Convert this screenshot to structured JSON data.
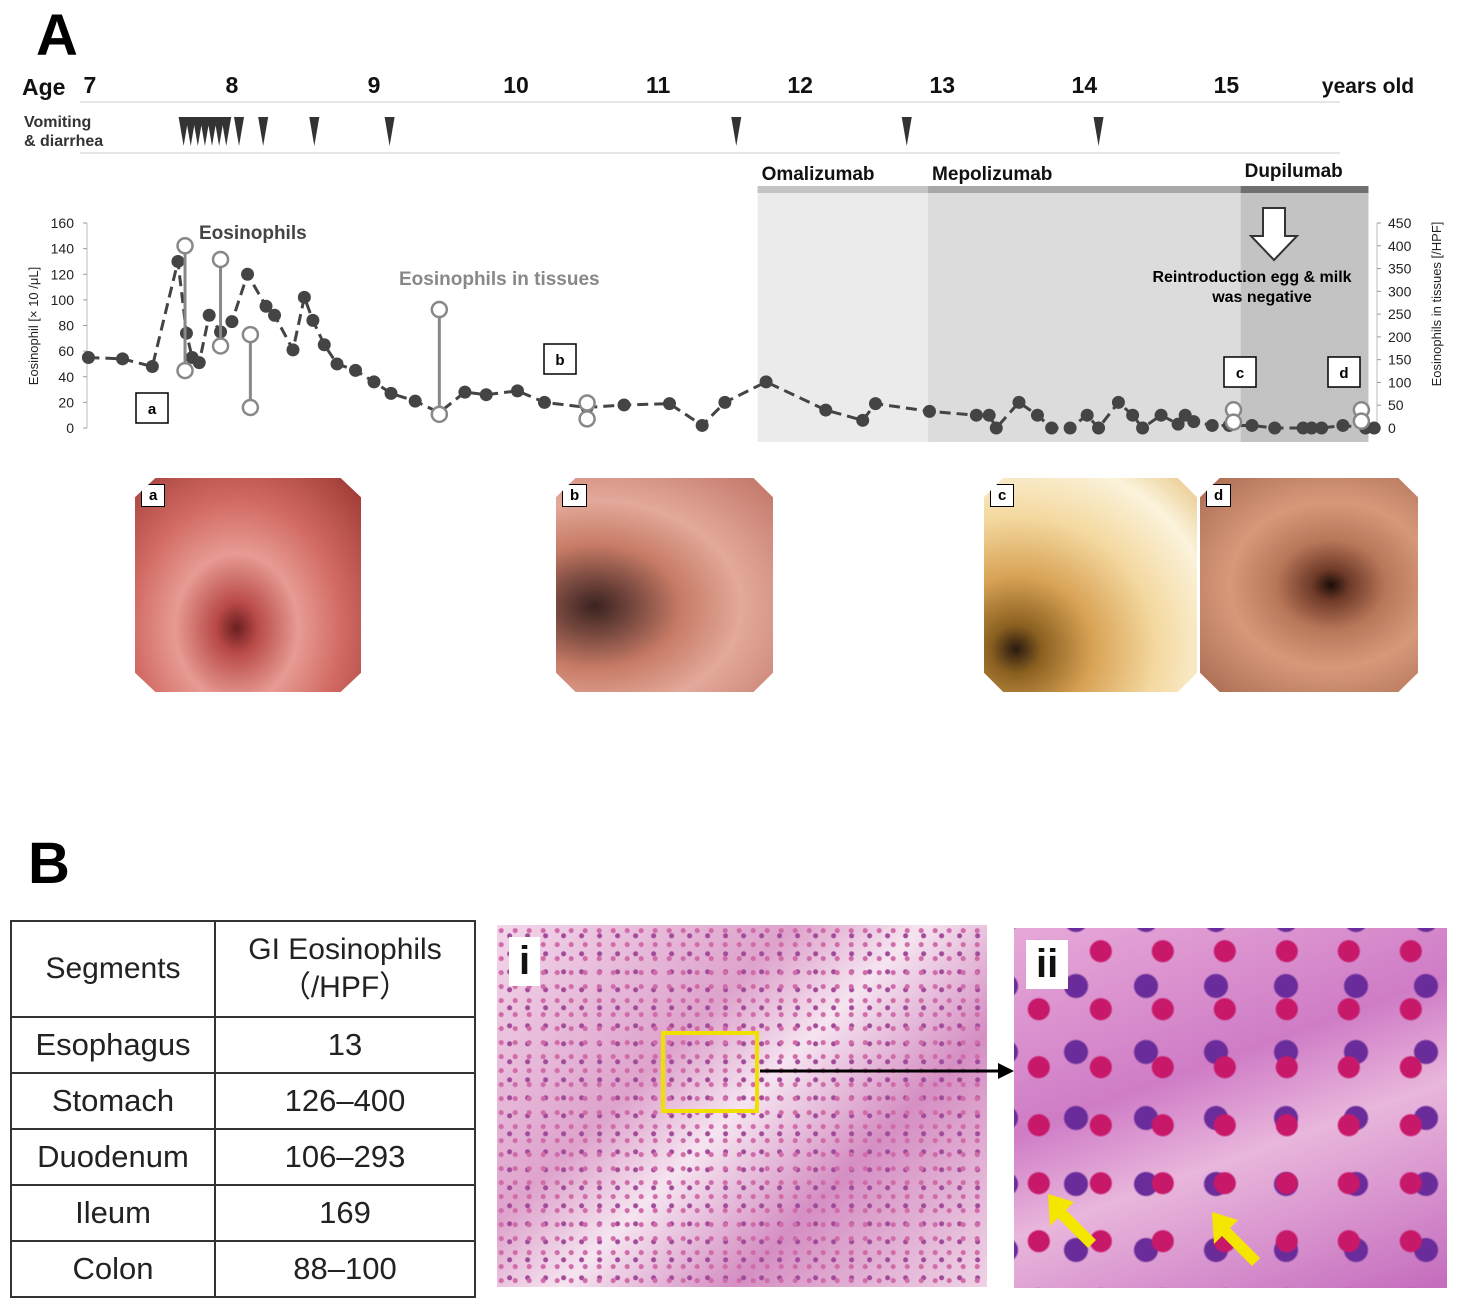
{
  "panelA": {
    "letter": "A"
  },
  "panelB": {
    "letter": "B"
  },
  "timeline": {
    "age_label": "Age",
    "ages": [
      "7",
      "8",
      "9",
      "10",
      "11",
      "12",
      "13",
      "14",
      "15"
    ],
    "unit": "years old",
    "vomit_label_1": "Vomiting",
    "vomit_label_2": "& diarrhea",
    "vomiting_events_age": [
      7.66,
      7.71,
      7.76,
      7.81,
      7.86,
      7.91,
      7.96,
      8.05,
      8.22,
      8.58,
      9.11,
      11.55,
      12.75,
      14.1
    ]
  },
  "treatments": [
    {
      "name": "Omalizumab",
      "start": 11.7,
      "end": 12.9,
      "color": "#ebebeb",
      "bar": "#c4c4c4"
    },
    {
      "name": "Mepolizumab",
      "start": 12.9,
      "end": 15.1,
      "color": "#dcdcdc",
      "bar": "#a8a8a8"
    },
    {
      "name": "Dupilumab",
      "start": 15.1,
      "end": 16.0,
      "color": "#c3c3c3",
      "bar": "#707070"
    }
  ],
  "annotations": {
    "eos_label": "Eosinophils",
    "tissue_label": "Eosinophils in tissues",
    "reintro_1": "Reintroduction egg & milk",
    "reintro_2": "was negative"
  },
  "chart_data": {
    "type": "line",
    "ylabel_left": "Eosinophil [× 10 /μL]",
    "ylabel_right": "Eosinophils in tissues [/HPF]",
    "ylim_left": [
      0,
      160
    ],
    "ylim_right": [
      0,
      450
    ],
    "left_ticks": [
      0,
      20,
      40,
      60,
      80,
      100,
      120,
      140,
      160
    ],
    "right_ticks": [
      0,
      50,
      100,
      150,
      200,
      250,
      300,
      350,
      400,
      450
    ],
    "series": [
      {
        "name": "Eosinophils",
        "axis": "left",
        "x": [
          6.99,
          7.23,
          7.44,
          7.62,
          7.68,
          7.72,
          7.77,
          7.84,
          7.92,
          8.0,
          8.11,
          8.24,
          8.3,
          8.43,
          8.51,
          8.57,
          8.65,
          8.74,
          8.87,
          9.0,
          9.12,
          9.29,
          9.46,
          9.64,
          9.79,
          10.01,
          10.2,
          10.5,
          10.76,
          11.08,
          11.31,
          11.47,
          11.76,
          12.18,
          12.44,
          12.53,
          12.91,
          13.24,
          13.33,
          13.38,
          13.54,
          13.67,
          13.77,
          13.9,
          14.02,
          14.1,
          14.24,
          14.34,
          14.41,
          14.54,
          14.66,
          14.71,
          14.77,
          14.9,
          15.02,
          15.18,
          15.34,
          15.54,
          15.6,
          15.67,
          15.82,
          15.98,
          16.04
        ],
        "values": [
          55,
          54,
          48,
          130,
          74,
          55,
          51,
          88,
          75,
          83,
          120,
          95,
          88,
          61,
          102,
          84,
          65,
          50,
          45,
          36,
          27,
          21,
          12,
          28,
          26,
          29,
          20,
          16,
          18,
          19,
          2,
          20,
          36,
          14,
          6,
          19,
          13,
          10,
          10,
          0,
          20,
          10,
          0,
          0,
          10,
          0,
          20,
          10,
          0,
          10,
          3,
          10,
          5,
          2,
          2,
          2,
          0,
          0,
          0,
          0,
          2,
          0,
          0
        ]
      },
      {
        "name": "Eosinophils in tissues",
        "axis": "right",
        "points": [
          {
            "x": 7.67,
            "min": 126,
            "max": 400,
            "label": "a"
          },
          {
            "x": 7.92,
            "min": 180,
            "max": 370
          },
          {
            "x": 8.13,
            "min": 45,
            "max": 205
          },
          {
            "x": 9.46,
            "min": 30,
            "max": 260
          },
          {
            "x": 10.5,
            "min": 20,
            "max": 55,
            "label": "b"
          },
          {
            "x": 15.05,
            "min": 13,
            "max": 40,
            "label": "c"
          },
          {
            "x": 15.95,
            "min": 15,
            "max": 40,
            "label": "d"
          }
        ]
      }
    ],
    "x_range": [
      6.98,
      16.06
    ],
    "legend": "none",
    "grid": false
  },
  "endoscopy": [
    {
      "label": "a"
    },
    {
      "label": "b"
    },
    {
      "label": "c"
    },
    {
      "label": "d"
    }
  ],
  "table": {
    "headers": [
      "Segments",
      "GI Eosinophils",
      "（/HPF）"
    ],
    "rows": [
      {
        "segment": "Esophagus",
        "value": "13"
      },
      {
        "segment": "Stomach",
        "value": "126–400"
      },
      {
        "segment": "Duodenum",
        "value": "106–293"
      },
      {
        "segment": "Ileum",
        "value": "169"
      },
      {
        "segment": "Colon",
        "value": "88–100"
      }
    ]
  },
  "histology": [
    {
      "label": "i"
    },
    {
      "label": "ii"
    }
  ]
}
